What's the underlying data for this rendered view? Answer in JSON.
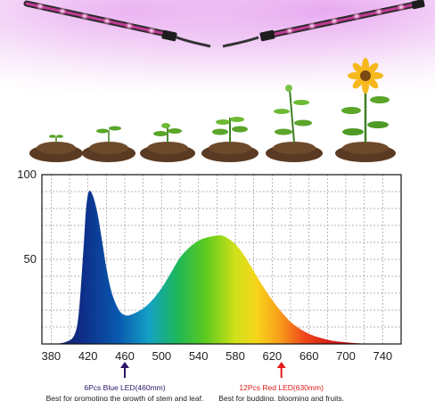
{
  "chart_data": {
    "type": "area",
    "title": "",
    "xlabel": "",
    "ylabel": "",
    "xlim": [
      370,
      760
    ],
    "ylim": [
      0,
      100
    ],
    "x_ticks": [
      "380",
      "420",
      "460",
      "500",
      "540",
      "580",
      "620",
      "660",
      "700",
      "740"
    ],
    "y_ticks": [
      "100",
      "50"
    ],
    "grid": true,
    "series": [
      {
        "x": [
          380,
          395,
          405,
          410,
          415,
          418,
          421,
          425,
          430,
          435,
          440,
          445,
          450,
          455,
          460,
          465,
          470,
          480,
          490,
          500,
          510,
          520,
          530,
          540,
          550,
          560,
          565,
          570,
          580,
          590,
          600,
          610,
          620,
          630,
          640,
          650,
          660,
          670,
          680,
          690,
          700,
          710,
          720,
          730
        ],
        "y": [
          0,
          1,
          5,
          18,
          55,
          80,
          90,
          88,
          78,
          62,
          45,
          32,
          24,
          19,
          17,
          17,
          18,
          21,
          26,
          33,
          42,
          51,
          57,
          61,
          63,
          64,
          64,
          63,
          59,
          52,
          43,
          34,
          26,
          19,
          13,
          9,
          6,
          4,
          2.5,
          1.5,
          1,
          0.5,
          0.2,
          0
        ]
      }
    ],
    "annotations": [
      {
        "x": 460,
        "color": "#2b1566",
        "label": "6Pcs Blue LED(460mm)",
        "description": "Best for promoting the growth of stem and leaf."
      },
      {
        "x": 630,
        "color": "#e31a1a",
        "label": "12Pcs Red LED(630mm)",
        "description": "Best for budding, blooming and fruits."
      }
    ]
  },
  "hero": {
    "stages": [
      "seedling-1",
      "seedling-2",
      "seedling-3",
      "young-plant",
      "budding-plant",
      "flowering-sunflower"
    ]
  }
}
